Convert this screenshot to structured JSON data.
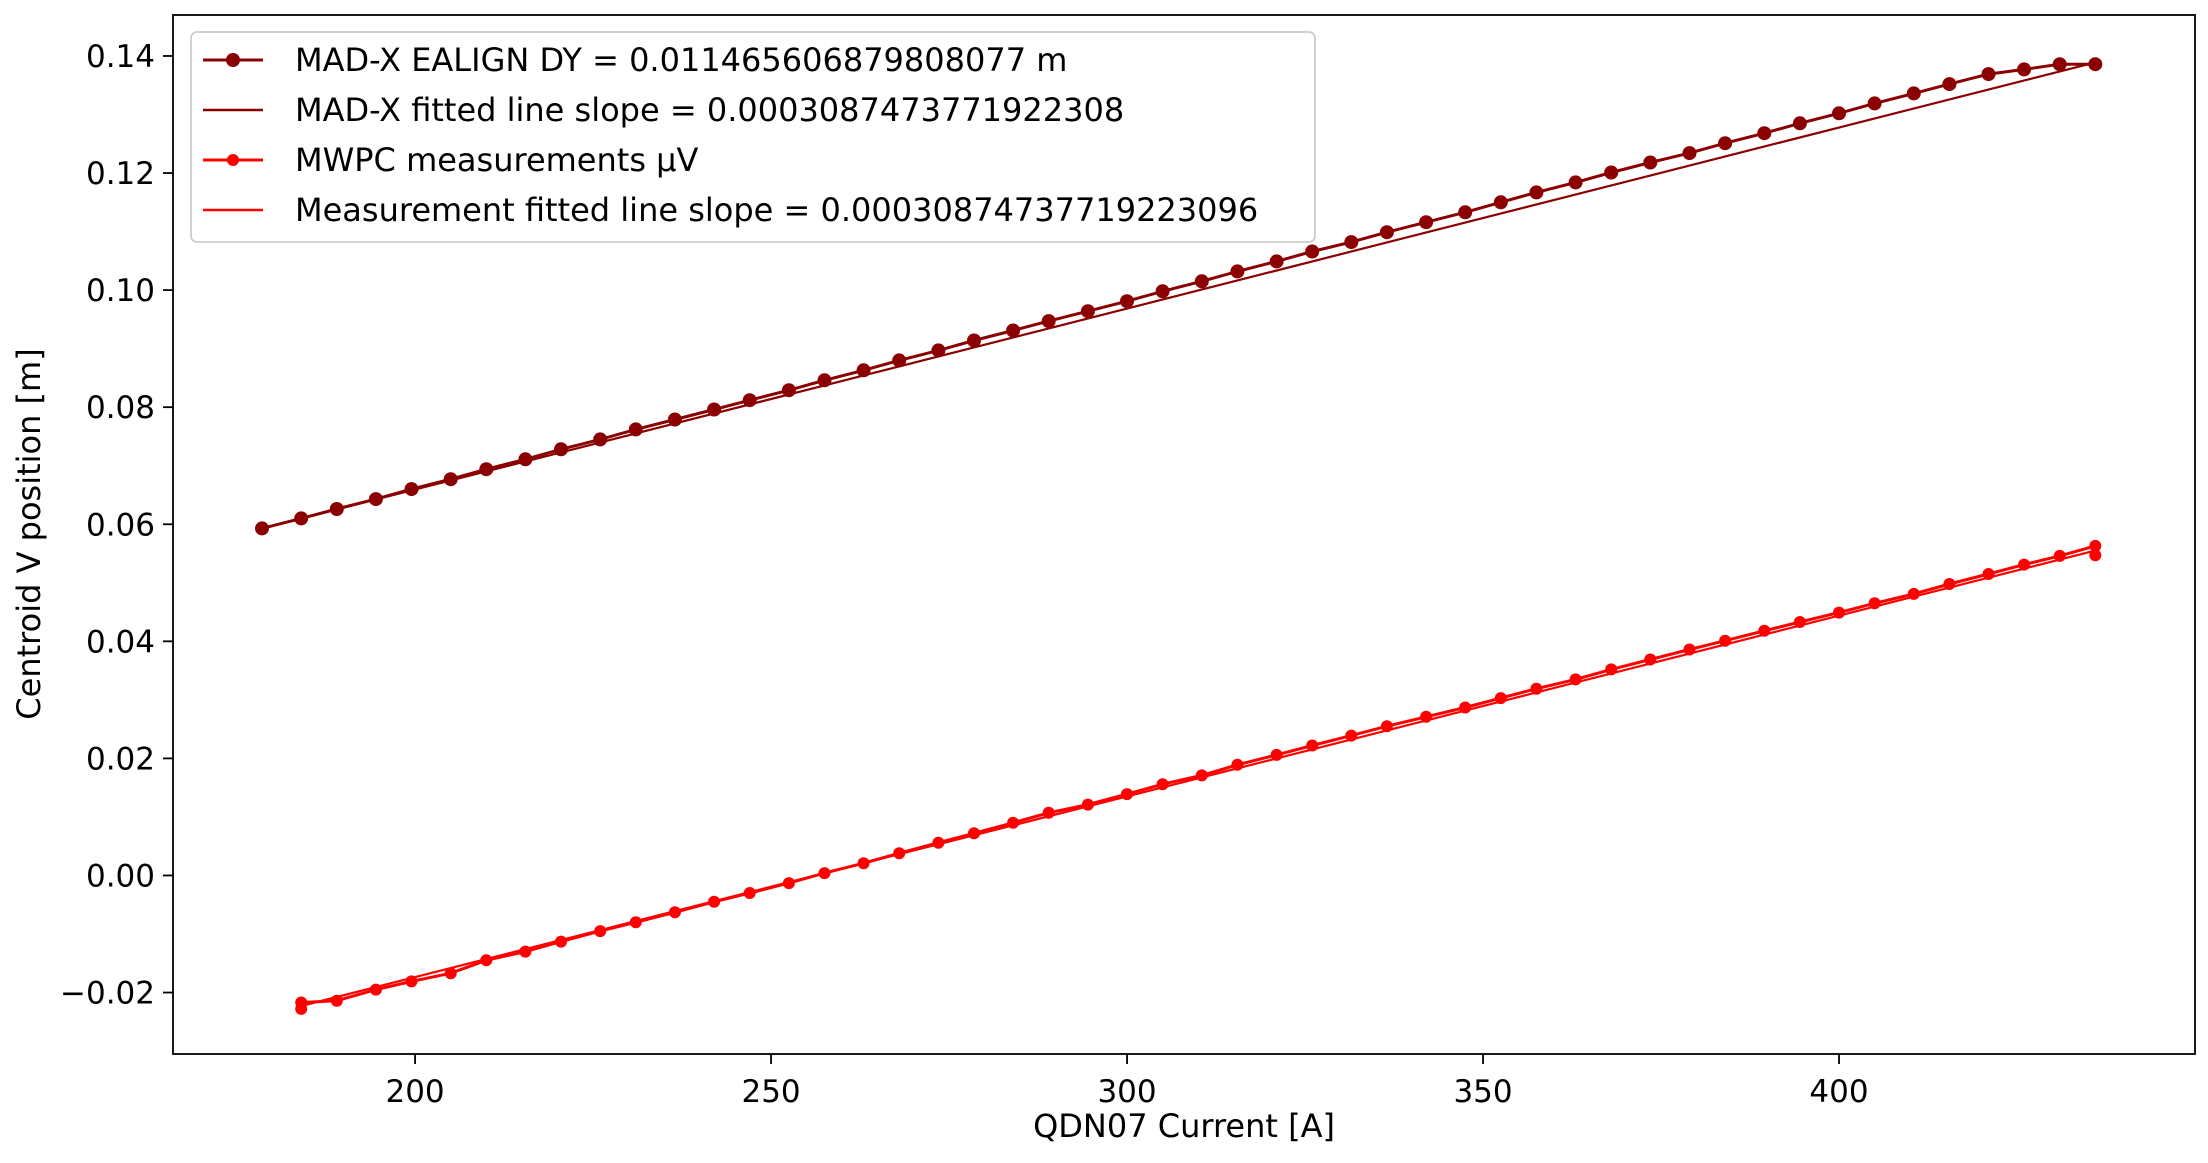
{
  "chart_data": {
    "type": "line",
    "title": "",
    "xlabel": "QDN07 Current [A]",
    "ylabel": "Centroid V position [m]",
    "xlim": [
      166,
      450
    ],
    "ylim": [
      -0.0305,
      0.147
    ],
    "xticks": [
      200,
      250,
      300,
      350,
      400
    ],
    "yticks": [
      -0.02,
      0.0,
      0.02,
      0.04,
      0.06,
      0.08,
      0.1,
      0.12,
      0.14
    ],
    "xtick_labels": [
      "200",
      "250",
      "300",
      "350",
      "400"
    ],
    "ytick_labels": [
      "−0.02",
      "0.00",
      "0.02",
      "0.04",
      "0.06",
      "0.08",
      "0.10",
      "0.12",
      "0.14"
    ],
    "grid": false,
    "legend_position": "upper-left",
    "series": [
      {
        "name": "MAD-X EALIGN DY = 0.011465606879808077 m",
        "color": "#8b0000",
        "style": "line-markers",
        "x": [
          178.5,
          184,
          189,
          194.5,
          199.5,
          205,
          210,
          215.5,
          220.5,
          226,
          231,
          236.5,
          242,
          247,
          252.5,
          257.5,
          263,
          268,
          273.5,
          278.5,
          284,
          289,
          294.5,
          300,
          305,
          310.5,
          315.5,
          321,
          326,
          331.5,
          336.5,
          342,
          347.5,
          352.5,
          357.5,
          363,
          368,
          373.5,
          379,
          384,
          389.5,
          394.5,
          400,
          405,
          410.5,
          415.5,
          421,
          426,
          431,
          436
        ],
        "y": [
          0.0593,
          0.061,
          0.0626,
          0.0643,
          0.066,
          0.0677,
          0.0694,
          0.0711,
          0.0728,
          0.0745,
          0.0762,
          0.0779,
          0.0796,
          0.0812,
          0.0829,
          0.0846,
          0.0863,
          0.088,
          0.0897,
          0.0914,
          0.0931,
          0.0947,
          0.0964,
          0.0981,
          0.0998,
          0.1015,
          0.1032,
          0.1049,
          0.1066,
          0.1082,
          0.1099,
          0.1116,
          0.1133,
          0.115,
          0.1167,
          0.1184,
          0.1201,
          0.1218,
          0.1234,
          0.1251,
          0.1268,
          0.1285,
          0.1302,
          0.1319,
          0.1336,
          0.1352,
          0.1369,
          0.1377,
          0.1386,
          0.1386
        ]
      },
      {
        "name": "MAD-X fitted line slope = 0.0003087473771922308",
        "color": "#8b0000",
        "style": "line",
        "x": [
          178.5,
          436
        ],
        "y": [
          0.0593,
          0.1389
        ]
      },
      {
        "name": "MWPC measurements μV",
        "color": "#ff0000",
        "style": "line-markers",
        "x": [
          184,
          184,
          189,
          194.5,
          199.5,
          205,
          210,
          215.5,
          220.5,
          226,
          231,
          236.5,
          242,
          247,
          252.5,
          257.5,
          263,
          268,
          273.5,
          278.5,
          284,
          289,
          294.5,
          300,
          305,
          310.5,
          315.5,
          321,
          326,
          331.5,
          336.5,
          342,
          347.5,
          352.5,
          357.5,
          363,
          368,
          373.5,
          379,
          384,
          389.5,
          394.5,
          400,
          405,
          410.5,
          415.5,
          421,
          426,
          431,
          436,
          436
        ],
        "y": [
          -0.0228,
          -0.0217,
          -0.0214,
          -0.0195,
          -0.0181,
          -0.0167,
          -0.0145,
          -0.013,
          -0.0113,
          -0.0095,
          -0.008,
          -0.0063,
          -0.0045,
          -0.003,
          -0.0013,
          0.0004,
          0.0021,
          0.0038,
          0.0056,
          0.0072,
          0.009,
          0.0107,
          0.0121,
          0.0139,
          0.0156,
          0.0171,
          0.0189,
          0.0206,
          0.0222,
          0.0239,
          0.0255,
          0.0271,
          0.0287,
          0.0303,
          0.0319,
          0.0335,
          0.0352,
          0.0369,
          0.0386,
          0.0401,
          0.0418,
          0.0433,
          0.0449,
          0.0465,
          0.0481,
          0.0498,
          0.0515,
          0.0531,
          0.0546,
          0.0563,
          0.0547
        ]
      },
      {
        "name": "Measurement fitted line slope = 0.00030874737719223096",
        "color": "#ff0000",
        "style": "line",
        "x": [
          184,
          436
        ],
        "y": [
          -0.0223,
          0.0555
        ]
      }
    ]
  }
}
